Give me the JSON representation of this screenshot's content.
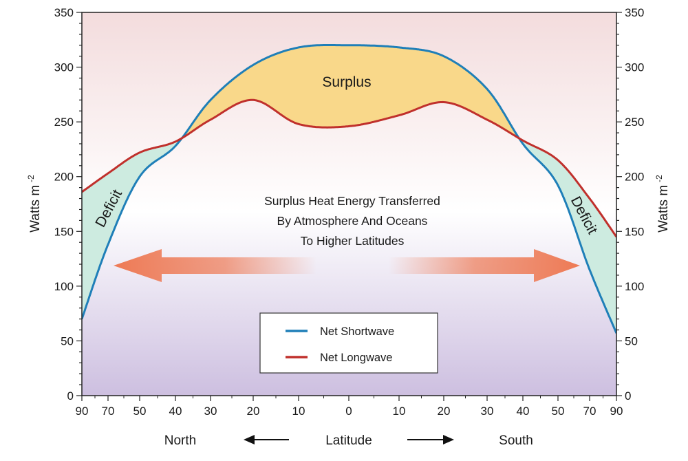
{
  "chart_data": {
    "type": "line",
    "xlabel": "Latitude",
    "xlabel_left": "North",
    "xlabel_right": "South",
    "ylabel": "Watts m",
    "ylabel_sup": "-2",
    "ylim": [
      0,
      350
    ],
    "yticks": [
      0,
      50,
      100,
      150,
      200,
      250,
      300,
      350
    ],
    "x_tick_labels": [
      "90",
      "70",
      "50",
      "40",
      "30",
      "20",
      "10",
      "0",
      "10",
      "20",
      "30",
      "40",
      "50",
      "70",
      "90"
    ],
    "x_positions": [
      -90,
      -70,
      -50,
      -40,
      -30,
      -20,
      -10,
      0,
      10,
      20,
      30,
      40,
      50,
      70,
      90
    ],
    "series": [
      {
        "name": "Net Shortwave",
        "color": "#1f7fb8",
        "x": [
          -90,
          -70,
          -50,
          -40,
          -30,
          -20,
          -10,
          0,
          10,
          20,
          30,
          40,
          50,
          70,
          90
        ],
        "values": [
          70,
          138,
          200,
          228,
          270,
          302,
          318,
          320,
          318,
          310,
          280,
          230,
          192,
          115,
          57
        ]
      },
      {
        "name": "Net Longwave",
        "color": "#c0302c",
        "x": [
          -90,
          -70,
          -50,
          -40,
          -30,
          -20,
          -10,
          0,
          10,
          20,
          30,
          40,
          50,
          70,
          90
        ],
        "values": [
          186,
          203,
          222,
          232,
          252,
          270,
          248,
          246,
          256,
          268,
          252,
          233,
          215,
          180,
          145
        ]
      }
    ],
    "regions": {
      "surplus": "Surplus",
      "deficit_left": "Deficit",
      "deficit_right": "Deficit"
    },
    "annotation": [
      "Surplus Heat Energy Transferred",
      "By Atmosphere And Oceans",
      "To Higher Latitudes"
    ],
    "legend_position": "bottom-center",
    "colors": {
      "surplus_fill": "#f9d88a",
      "deficit_fill": "#cdebe0",
      "arrow": "#ee7a55",
      "bg_top": "#f3dcdd",
      "bg_mid": "#ffffff",
      "bg_bottom": "#cdbfe0"
    }
  }
}
